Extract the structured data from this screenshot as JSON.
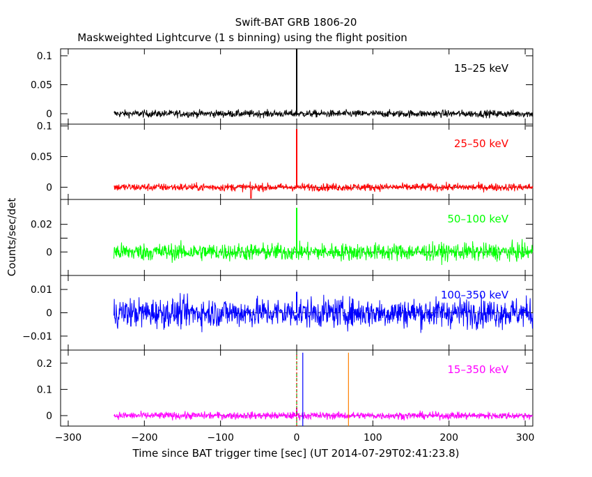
{
  "chart_data": {
    "type": "line",
    "title": "Swift-BAT GRB 1806-20",
    "subtitle": "Maskweighted Lightcurve (1 s binning) using the flight position",
    "xlabel": "Time since BAT trigger time [sec] (UT 2014-07-29T02:41:23.8)",
    "ylabel": "Counts/sec/det",
    "xlim": [
      -310,
      310
    ],
    "x_ticks": [
      -300,
      -200,
      -100,
      0,
      100,
      200,
      300
    ],
    "x_tick_labels": [
      "−300",
      "−200",
      "−100",
      "0",
      "100",
      "200",
      "300"
    ],
    "data_range": [
      -240,
      310
    ],
    "grid": false,
    "trigger_line_x": 0,
    "panels": [
      {
        "name": "15–25 keV",
        "color": "#000000",
        "ylim": [
          -0.018,
          0.112
        ],
        "yticks": [
          0,
          0.05,
          0.1
        ],
        "ytick_labels": [
          "0",
          "0.05",
          "0.1"
        ],
        "noise": 0.0045,
        "spike": 0.112
      },
      {
        "name": "25–50 keV",
        "color": "#ff0000",
        "ylim": [
          -0.02,
          0.103
        ],
        "yticks": [
          0,
          0.05,
          0.1
        ],
        "ytick_labels": [
          "0",
          "0.05",
          "0.1"
        ],
        "noise": 0.0045,
        "spike": 0.095,
        "dip": {
          "x": -60,
          "y": -0.018
        }
      },
      {
        "name": "50–100 keV",
        "color": "#00ff00",
        "ylim": [
          -0.017,
          0.038
        ],
        "yticks": [
          0,
          0.01,
          0.02
        ],
        "ytick_labels": [
          "0",
          "",
          "0.02"
        ],
        "noise": 0.0045,
        "spike": 0.032
      },
      {
        "name": "100–350 keV",
        "color": "#0000ff",
        "ylim": [
          -0.016,
          0.016
        ],
        "yticks": [
          -0.01,
          0,
          0.01
        ],
        "ytick_labels": [
          "−0.01",
          "0",
          "0.01"
        ],
        "noise": 0.0045,
        "spike": 0.009
      },
      {
        "name": "15–350 keV",
        "color": "#ff00ff",
        "ylim": [
          -0.04,
          0.25
        ],
        "yticks": [
          0,
          0.1,
          0.2
        ],
        "ytick_labels": [
          "0",
          "0.1",
          "0.2"
        ],
        "noise": 0.01,
        "spike": 0.03,
        "markers": [
          {
            "x": 0,
            "color": "#00aa00",
            "style": "dashed",
            "y_top": 0.24
          },
          {
            "x": 0,
            "color": "#ff0000",
            "style": "dotted",
            "y_top": 0.24
          },
          {
            "x": 8,
            "color": "#0000ff",
            "style": "solid",
            "y_top": 0.24
          },
          {
            "x": 68,
            "color": "#ff8000",
            "style": "solid",
            "y_top": 0.24
          }
        ]
      }
    ]
  }
}
